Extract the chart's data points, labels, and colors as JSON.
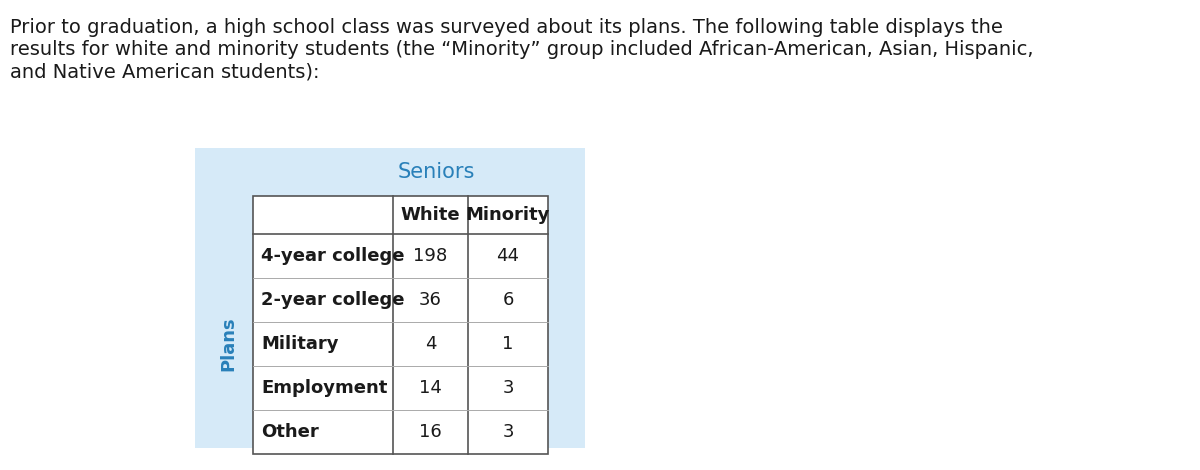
{
  "paragraph_text": "Prior to graduation, a high school class was surveyed about its plans. The following table displays the\nresults for white and minority students (the “Minority” group included African-American, Asian, Hispanic,\nand Native American students):",
  "seniors_label": "Seniors",
  "col_headers": [
    "White",
    "Minority"
  ],
  "row_labels": [
    "4-year college",
    "2-year college",
    "Military",
    "Employment",
    "Other"
  ],
  "white_values": [
    198,
    36,
    4,
    14,
    16
  ],
  "minority_values": [
    44,
    6,
    1,
    3,
    3
  ],
  "plans_label": "Plans",
  "bg_color": "#d6eaf8",
  "header_color": "#2980b9",
  "text_color": "#1a1a1a",
  "para_fontsize": 14,
  "seniors_fontsize": 15,
  "col_header_fontsize": 13,
  "cell_fontsize": 13,
  "plans_fontsize": 13
}
